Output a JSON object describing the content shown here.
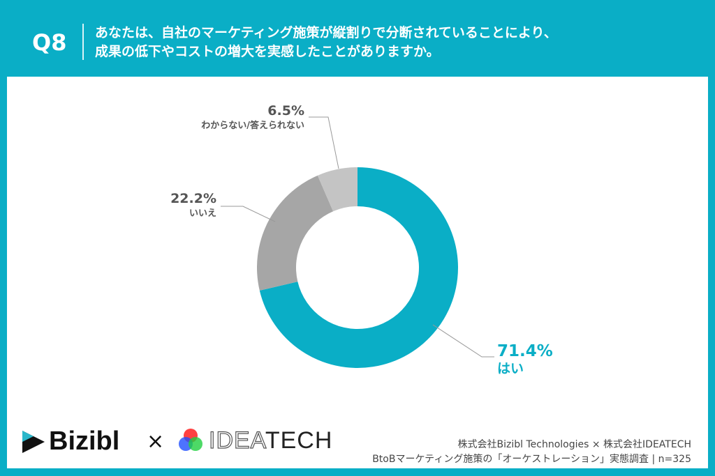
{
  "header": {
    "question_no": "Q8",
    "question_line1": "あなたは、自社のマーケティング施策が縦割りで分断されていることにより、",
    "question_line2": "成果の低下やコストの増大を実感したことがありますか。"
  },
  "chart_data": {
    "type": "pie",
    "donut": true,
    "categories": [
      "はい",
      "いいえ",
      "わからない/答えられない"
    ],
    "values": [
      71.4,
      22.2,
      6.5
    ],
    "labels": [
      "71.4%",
      "22.2%",
      "6.5%"
    ],
    "colors": [
      "#0aaec6",
      "#a6a6a6",
      "#c4c4c4"
    ],
    "start": "top, clockwise"
  },
  "footer": {
    "logo1": "Bizibl",
    "times": "×",
    "logo2_light": "IDEA",
    "logo2_dark": "TECH",
    "credit_line1": "株式会社Bizibl Technologies × 株式会社IDEATECH",
    "credit_line2": "BtoBマーケティング施策の「オーケストレーション」実態調査 | n=325"
  }
}
